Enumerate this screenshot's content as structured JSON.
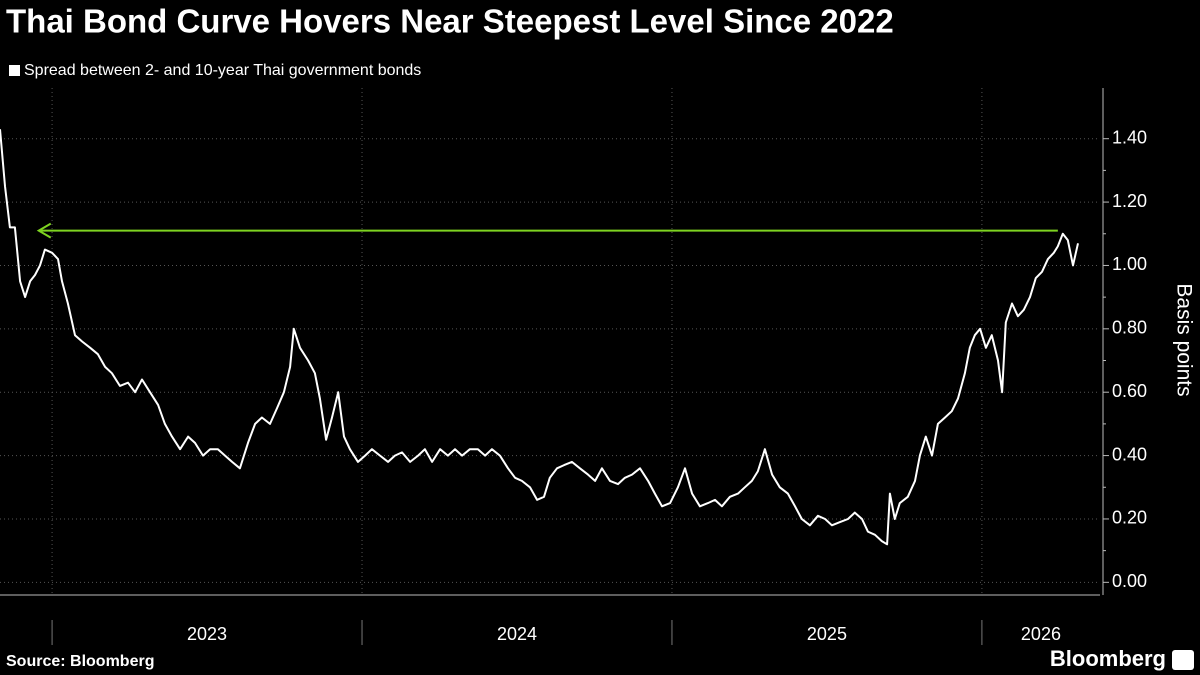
{
  "chart_data": {
    "type": "line",
    "title": "Thai Bond Curve Hovers Near Steepest Level Since 2022",
    "y_label": "Basis points",
    "source": "Source: Bloomberg",
    "brand": "Bloomberg",
    "x": [
      2022.832,
      2022.848,
      2022.864,
      2022.88,
      2022.897,
      2022.913,
      2022.929,
      2022.945,
      2022.961,
      2022.977,
      2023.0,
      2023.019,
      2023.032,
      2023.051,
      2023.074,
      2023.097,
      2023.123,
      2023.148,
      2023.171,
      2023.193,
      2023.219,
      2023.245,
      2023.268,
      2023.29,
      2023.316,
      2023.342,
      2023.364,
      2023.387,
      2023.413,
      2023.439,
      2023.461,
      2023.487,
      2023.51,
      2023.535,
      2023.558,
      2023.581,
      2023.606,
      2023.632,
      2023.655,
      2023.677,
      2023.703,
      2023.726,
      2023.748,
      2023.768,
      2023.78,
      2023.8,
      2023.826,
      2023.848,
      2023.864,
      2023.884,
      2023.903,
      2023.923,
      2023.942,
      2023.961,
      2023.987,
      2024.01,
      2024.032,
      2024.058,
      2024.084,
      2024.106,
      2024.129,
      2024.155,
      2024.181,
      2024.203,
      2024.226,
      2024.252,
      2024.277,
      2024.3,
      2024.323,
      2024.348,
      2024.374,
      2024.397,
      2024.419,
      2024.445,
      2024.471,
      2024.494,
      2024.516,
      2024.542,
      2024.565,
      2024.587,
      2024.606,
      2024.629,
      2024.652,
      2024.677,
      2024.703,
      2024.729,
      2024.752,
      2024.774,
      2024.8,
      2024.826,
      2024.848,
      2024.871,
      2024.897,
      2024.923,
      2024.945,
      2024.968,
      2024.994,
      2025.019,
      2025.042,
      2025.065,
      2025.09,
      2025.116,
      2025.139,
      2025.161,
      2025.187,
      2025.213,
      2025.235,
      2025.258,
      2025.277,
      2025.3,
      2025.323,
      2025.348,
      2025.374,
      2025.397,
      2025.419,
      2025.445,
      2025.471,
      2025.494,
      2025.516,
      2025.542,
      2025.568,
      2025.59,
      2025.613,
      2025.632,
      2025.655,
      2025.677,
      2025.694,
      2025.703,
      2025.719,
      2025.735,
      2025.761,
      2025.784,
      2025.8,
      2025.819,
      2025.839,
      2025.858,
      2025.881,
      2025.903,
      2025.923,
      2025.945,
      2025.961,
      2025.977,
      2025.994,
      2026.013,
      2026.032,
      2026.052,
      2026.065,
      2026.077,
      2026.097,
      2026.116,
      2026.135,
      2026.155,
      2026.174,
      2026.194,
      2026.213,
      2026.232,
      2026.245,
      2026.261,
      2026.277,
      2026.294,
      2026.31
    ],
    "series": [
      {
        "name": "Spread between 2- and 10-year Thai government bonds",
        "color": "#ffffff",
        "values": [
          1.43,
          1.25,
          1.12,
          1.12,
          0.95,
          0.9,
          0.95,
          0.97,
          1.0,
          1.05,
          1.04,
          1.02,
          0.95,
          0.88,
          0.78,
          0.76,
          0.74,
          0.72,
          0.68,
          0.66,
          0.62,
          0.63,
          0.6,
          0.64,
          0.6,
          0.56,
          0.5,
          0.46,
          0.42,
          0.46,
          0.44,
          0.4,
          0.42,
          0.42,
          0.4,
          0.38,
          0.36,
          0.44,
          0.5,
          0.52,
          0.5,
          0.55,
          0.6,
          0.68,
          0.8,
          0.74,
          0.7,
          0.66,
          0.58,
          0.45,
          0.52,
          0.6,
          0.46,
          0.42,
          0.38,
          0.4,
          0.42,
          0.4,
          0.38,
          0.4,
          0.41,
          0.38,
          0.4,
          0.42,
          0.38,
          0.42,
          0.4,
          0.42,
          0.4,
          0.42,
          0.42,
          0.4,
          0.42,
          0.4,
          0.36,
          0.33,
          0.32,
          0.3,
          0.26,
          0.27,
          0.33,
          0.36,
          0.37,
          0.38,
          0.36,
          0.34,
          0.32,
          0.36,
          0.32,
          0.31,
          0.33,
          0.34,
          0.36,
          0.32,
          0.28,
          0.24,
          0.25,
          0.3,
          0.36,
          0.28,
          0.24,
          0.25,
          0.26,
          0.24,
          0.27,
          0.28,
          0.3,
          0.32,
          0.35,
          0.42,
          0.34,
          0.3,
          0.28,
          0.24,
          0.2,
          0.18,
          0.21,
          0.2,
          0.18,
          0.19,
          0.2,
          0.22,
          0.2,
          0.16,
          0.15,
          0.13,
          0.12,
          0.28,
          0.2,
          0.25,
          0.27,
          0.32,
          0.4,
          0.46,
          0.4,
          0.5,
          0.52,
          0.54,
          0.58,
          0.66,
          0.74,
          0.78,
          0.8,
          0.74,
          0.78,
          0.7,
          0.6,
          0.82,
          0.88,
          0.84,
          0.86,
          0.9,
          0.96,
          0.98,
          1.02,
          1.04,
          1.06,
          1.1,
          1.08,
          1.0,
          1.07
        ]
      }
    ],
    "xlim": [
      2022.832,
      2026.381
    ],
    "xticks": [
      {
        "value": 2023,
        "label": "2023"
      },
      {
        "value": 2024,
        "label": "2024"
      },
      {
        "value": 2025,
        "label": "2025"
      },
      {
        "value": 2026,
        "label": "2026"
      }
    ],
    "ylim": [
      -0.04,
      1.56
    ],
    "yticks": [
      {
        "value": 0,
        "label": "0.00"
      },
      {
        "value": 0.2,
        "label": "0.20"
      },
      {
        "value": 0.4,
        "label": "0.40"
      },
      {
        "value": 0.6,
        "label": "0.60"
      },
      {
        "value": 0.8,
        "label": "0.80"
      },
      {
        "value": 1,
        "label": "1.00"
      },
      {
        "value": 1.2,
        "label": "1.20"
      },
      {
        "value": 1.4,
        "label": "1.40"
      }
    ],
    "grid": true,
    "reference_arrow": {
      "y": 1.11,
      "x_from": 2026.245,
      "x_to": 2022.957,
      "color": "#7ed321"
    }
  }
}
